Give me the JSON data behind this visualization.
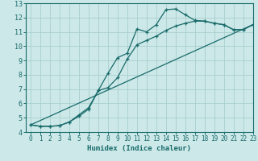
{
  "xlabel": "Humidex (Indice chaleur)",
  "xlim": [
    -0.5,
    23
  ],
  "ylim": [
    4,
    13
  ],
  "xticks": [
    0,
    1,
    2,
    3,
    4,
    5,
    6,
    7,
    8,
    9,
    10,
    11,
    12,
    13,
    14,
    15,
    16,
    17,
    18,
    19,
    20,
    21,
    22,
    23
  ],
  "yticks": [
    4,
    5,
    6,
    7,
    8,
    9,
    10,
    11,
    12,
    13
  ],
  "bg_color": "#cce8e8",
  "grid_color": "#aacece",
  "line_color": "#1a6b6b",
  "line1_x": [
    0,
    1,
    2,
    3,
    4,
    5,
    6,
    7,
    8,
    9,
    10,
    11,
    12,
    13,
    14,
    15,
    16,
    17,
    18,
    19,
    20,
    21,
    22,
    23
  ],
  "line1_y": [
    4.5,
    4.4,
    4.4,
    4.45,
    4.7,
    5.2,
    5.7,
    6.9,
    8.1,
    9.2,
    9.5,
    11.2,
    11.0,
    11.5,
    12.55,
    12.6,
    12.2,
    11.8,
    11.75,
    11.6,
    11.5,
    11.15,
    11.15,
    11.5
  ],
  "line2_x": [
    0,
    1,
    2,
    3,
    4,
    5,
    6,
    7,
    8,
    9,
    10,
    11,
    12,
    13,
    14,
    15,
    16,
    17,
    18,
    19,
    20,
    21,
    22,
    23
  ],
  "line2_y": [
    4.5,
    4.4,
    4.4,
    4.45,
    4.7,
    5.1,
    5.6,
    6.9,
    7.1,
    7.8,
    9.1,
    10.1,
    10.4,
    10.7,
    11.1,
    11.4,
    11.6,
    11.75,
    11.75,
    11.6,
    11.5,
    11.15,
    11.15,
    11.5
  ],
  "line3_x": [
    0,
    23
  ],
  "line3_y": [
    4.5,
    11.5
  ]
}
